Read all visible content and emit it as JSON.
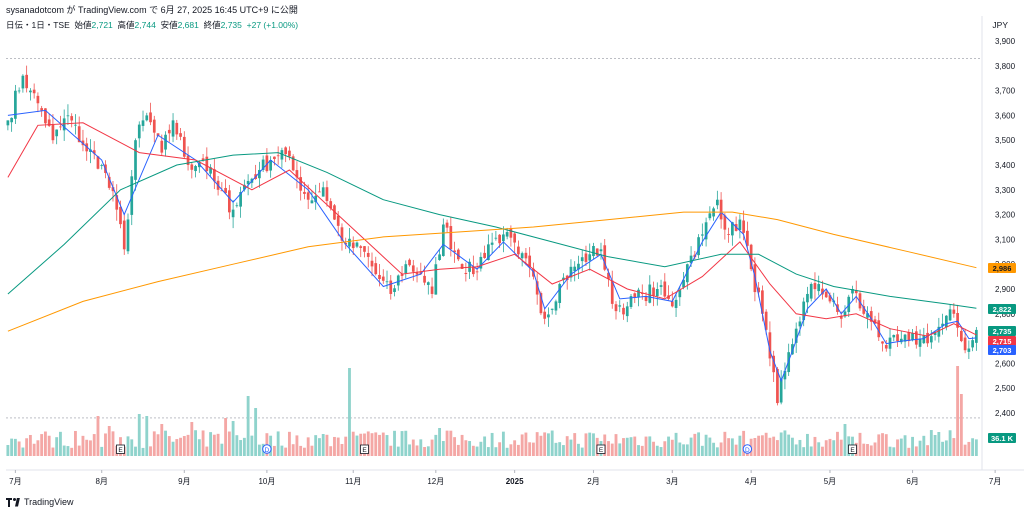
{
  "header": {
    "published_text": "sysanadotcom が TradingView.com で 6月 27, 2025 16:45 UTC+9 に公開"
  },
  "ohlc": {
    "symbol": "日伝・1日・TSE",
    "open_label": "始値",
    "open": "2,721",
    "high_label": "高値",
    "high": "2,744",
    "low_label": "安値",
    "low": "2,681",
    "close_label": "終値",
    "close": "2,735",
    "change": "+27 (+1.00%)"
  },
  "currency": "JPY",
  "footer": {
    "brand": "TradingView"
  },
  "colors": {
    "up": "#26a69a",
    "down": "#ef5350",
    "vol_up": "#8fd3cc",
    "vol_down": "#f4a7a5",
    "ma_short": "#2962ff",
    "ma_mid": "#f23645",
    "ma_long": "#089981",
    "ma_very_long": "#ff9800"
  },
  "chart_data": {
    "type": "candlestick",
    "y_axis": {
      "ticks": [
        "2,400",
        "2,500",
        "2,600",
        "2,700",
        "2,800",
        "2,900",
        "3,000",
        "3,100",
        "3,200",
        "3,300",
        "3,400",
        "3,500",
        "3,600",
        "3,700",
        "3,800",
        "3,900"
      ],
      "range": [
        2340,
        3950
      ],
      "dashed_high": 3830,
      "dashed_low": 2380
    },
    "x_axis": {
      "labels": [
        "7月",
        "8月",
        "9月",
        "10月",
        "11月",
        "12月",
        "2025",
        "2月",
        "3月",
        "4月",
        "5月",
        "6月",
        "7月"
      ],
      "label_index": [
        2,
        25,
        47,
        69,
        92,
        114,
        135,
        156,
        177,
        198,
        219,
        241,
        263
      ]
    },
    "price_badges": [
      {
        "value": "2,986",
        "price": 2986,
        "bg": "#ff9800",
        "fg": "#131722"
      },
      {
        "value": "2,822",
        "price": 2822,
        "bg": "#089981",
        "fg": "#ffffff"
      },
      {
        "value": "2,735",
        "price": 2735,
        "bg": "#089981",
        "fg": "#ffffff"
      },
      {
        "value": "2,715",
        "price": 2715,
        "bg": "#f23645",
        "fg": "#ffffff"
      },
      {
        "value": "2,703",
        "price": 2703,
        "bg": "#2962ff",
        "fg": "#ffffff"
      }
    ],
    "volume_badge": "36.1 K",
    "event_markers": [
      {
        "label": "E",
        "index": 30
      },
      {
        "label": "D",
        "index": 69
      },
      {
        "label": "E",
        "index": 95
      },
      {
        "label": "E",
        "index": 158
      },
      {
        "label": "D",
        "index": 197
      },
      {
        "label": "E",
        "index": 225
      }
    ],
    "anchors": [
      {
        "i": 0,
        "c": 3580
      },
      {
        "i": 4,
        "c": 3760
      },
      {
        "i": 6,
        "c": 3700
      },
      {
        "i": 9,
        "c": 3620
      },
      {
        "i": 12,
        "c": 3500
      },
      {
        "i": 16,
        "c": 3600
      },
      {
        "i": 20,
        "c": 3480
      },
      {
        "i": 25,
        "c": 3400
      },
      {
        "i": 29,
        "c": 3220
      },
      {
        "i": 31,
        "c": 3060
      },
      {
        "i": 34,
        "c": 3500
      },
      {
        "i": 37,
        "c": 3600
      },
      {
        "i": 41,
        "c": 3450
      },
      {
        "i": 44,
        "c": 3580
      },
      {
        "i": 48,
        "c": 3400
      },
      {
        "i": 52,
        "c": 3420
      },
      {
        "i": 56,
        "c": 3300
      },
      {
        "i": 60,
        "c": 3220
      },
      {
        "i": 63,
        "c": 3320
      },
      {
        "i": 67,
        "c": 3380
      },
      {
        "i": 70,
        "c": 3420
      },
      {
        "i": 73,
        "c": 3460
      },
      {
        "i": 77,
        "c": 3350
      },
      {
        "i": 80,
        "c": 3260
      },
      {
        "i": 84,
        "c": 3310
      },
      {
        "i": 87,
        "c": 3180
      },
      {
        "i": 90,
        "c": 3080
      },
      {
        "i": 95,
        "c": 3050
      },
      {
        "i": 98,
        "c": 2960
      },
      {
        "i": 102,
        "c": 2880
      },
      {
        "i": 106,
        "c": 3000
      },
      {
        "i": 110,
        "c": 2960
      },
      {
        "i": 113,
        "c": 2880
      },
      {
        "i": 116,
        "c": 3160
      },
      {
        "i": 120,
        "c": 3020
      },
      {
        "i": 124,
        "c": 2960
      },
      {
        "i": 128,
        "c": 3080
      },
      {
        "i": 132,
        "c": 3120
      },
      {
        "i": 136,
        "c": 3040
      },
      {
        "i": 140,
        "c": 2950
      },
      {
        "i": 143,
        "c": 2780
      },
      {
        "i": 147,
        "c": 2920
      },
      {
        "i": 151,
        "c": 2990
      },
      {
        "i": 155,
        "c": 3040
      },
      {
        "i": 158,
        "c": 3060
      },
      {
        "i": 161,
        "c": 2840
      },
      {
        "i": 165,
        "c": 2830
      },
      {
        "i": 169,
        "c": 2880
      },
      {
        "i": 173,
        "c": 2900
      },
      {
        "i": 177,
        "c": 2830
      },
      {
        "i": 181,
        "c": 3000
      },
      {
        "i": 185,
        "c": 3120
      },
      {
        "i": 189,
        "c": 3260
      },
      {
        "i": 192,
        "c": 3120
      },
      {
        "i": 195,
        "c": 3180
      },
      {
        "i": 198,
        "c": 2980
      },
      {
        "i": 201,
        "c": 2800
      },
      {
        "i": 203,
        "c": 2620
      },
      {
        "i": 205,
        "c": 2440
      },
      {
        "i": 207,
        "c": 2570
      },
      {
        "i": 210,
        "c": 2740
      },
      {
        "i": 213,
        "c": 2880
      },
      {
        "i": 216,
        "c": 2920
      },
      {
        "i": 219,
        "c": 2850
      },
      {
        "i": 222,
        "c": 2780
      },
      {
        "i": 225,
        "c": 2900
      },
      {
        "i": 228,
        "c": 2800
      },
      {
        "i": 231,
        "c": 2760
      },
      {
        "i": 234,
        "c": 2660
      },
      {
        "i": 237,
        "c": 2690
      },
      {
        "i": 240,
        "c": 2690
      },
      {
        "i": 243,
        "c": 2700
      },
      {
        "i": 246,
        "c": 2710
      },
      {
        "i": 249,
        "c": 2760
      },
      {
        "i": 252,
        "c": 2800
      },
      {
        "i": 254,
        "c": 2690
      },
      {
        "i": 256,
        "c": 2660
      },
      {
        "i": 258,
        "c": 2735
      }
    ],
    "moving_averages": [
      {
        "name": "MA5",
        "color": "#2962ff",
        "points": [
          [
            0,
            3600
          ],
          [
            10,
            3620
          ],
          [
            25,
            3420
          ],
          [
            31,
            3200
          ],
          [
            40,
            3520
          ],
          [
            50,
            3420
          ],
          [
            60,
            3250
          ],
          [
            70,
            3420
          ],
          [
            80,
            3300
          ],
          [
            90,
            3080
          ],
          [
            100,
            2910
          ],
          [
            110,
            2960
          ],
          [
            116,
            3080
          ],
          [
            125,
            2980
          ],
          [
            132,
            3090
          ],
          [
            140,
            2970
          ],
          [
            143,
            2820
          ],
          [
            150,
            2960
          ],
          [
            158,
            3040
          ],
          [
            163,
            2860
          ],
          [
            170,
            2870
          ],
          [
            177,
            2850
          ],
          [
            185,
            3090
          ],
          [
            190,
            3210
          ],
          [
            196,
            3120
          ],
          [
            199,
            2950
          ],
          [
            203,
            2650
          ],
          [
            206,
            2530
          ],
          [
            209,
            2650
          ],
          [
            213,
            2820
          ],
          [
            218,
            2900
          ],
          [
            222,
            2800
          ],
          [
            226,
            2870
          ],
          [
            230,
            2780
          ],
          [
            234,
            2680
          ],
          [
            238,
            2690
          ],
          [
            244,
            2700
          ],
          [
            250,
            2760
          ],
          [
            253,
            2770
          ],
          [
            256,
            2700
          ],
          [
            258,
            2703
          ]
        ]
      },
      {
        "name": "MA25",
        "color": "#f23645",
        "points": [
          [
            0,
            3350
          ],
          [
            8,
            3560
          ],
          [
            20,
            3570
          ],
          [
            35,
            3450
          ],
          [
            50,
            3420
          ],
          [
            65,
            3300
          ],
          [
            75,
            3380
          ],
          [
            85,
            3240
          ],
          [
            95,
            3100
          ],
          [
            105,
            2960
          ],
          [
            115,
            2980
          ],
          [
            125,
            2990
          ],
          [
            135,
            3040
          ],
          [
            145,
            2920
          ],
          [
            155,
            2980
          ],
          [
            165,
            2900
          ],
          [
            175,
            2860
          ],
          [
            185,
            2950
          ],
          [
            195,
            3090
          ],
          [
            203,
            2920
          ],
          [
            210,
            2800
          ],
          [
            218,
            2780
          ],
          [
            226,
            2800
          ],
          [
            235,
            2740
          ],
          [
            245,
            2710
          ],
          [
            252,
            2760
          ],
          [
            258,
            2715
          ]
        ]
      },
      {
        "name": "MA75",
        "color": "#089981",
        "points": [
          [
            0,
            2880
          ],
          [
            15,
            3080
          ],
          [
            30,
            3300
          ],
          [
            45,
            3400
          ],
          [
            60,
            3440
          ],
          [
            72,
            3450
          ],
          [
            85,
            3370
          ],
          [
            100,
            3260
          ],
          [
            115,
            3200
          ],
          [
            130,
            3150
          ],
          [
            145,
            3090
          ],
          [
            160,
            3030
          ],
          [
            175,
            2990
          ],
          [
            190,
            3040
          ],
          [
            200,
            3040
          ],
          [
            210,
            2960
          ],
          [
            220,
            2910
          ],
          [
            235,
            2870
          ],
          [
            250,
            2840
          ],
          [
            258,
            2822
          ]
        ]
      },
      {
        "name": "MA200",
        "color": "#ff9800",
        "points": [
          [
            0,
            2730
          ],
          [
            20,
            2850
          ],
          [
            40,
            2930
          ],
          [
            60,
            3000
          ],
          [
            80,
            3070
          ],
          [
            100,
            3110
          ],
          [
            120,
            3130
          ],
          [
            140,
            3150
          ],
          [
            160,
            3180
          ],
          [
            180,
            3210
          ],
          [
            193,
            3210
          ],
          [
            205,
            3180
          ],
          [
            220,
            3120
          ],
          [
            240,
            3050
          ],
          [
            258,
            2986
          ]
        ]
      }
    ],
    "volume_spikes": [
      {
        "i": 24,
        "v": 40
      },
      {
        "i": 27,
        "v": 30
      },
      {
        "i": 35,
        "v": 42
      },
      {
        "i": 37,
        "v": 40
      },
      {
        "i": 41,
        "v": 32
      },
      {
        "i": 49,
        "v": 34
      },
      {
        "i": 58,
        "v": 38
      },
      {
        "i": 60,
        "v": 35
      },
      {
        "i": 64,
        "v": 60
      },
      {
        "i": 66,
        "v": 48
      },
      {
        "i": 91,
        "v": 88
      },
      {
        "i": 115,
        "v": 28
      },
      {
        "i": 199,
        "v": 18
      },
      {
        "i": 223,
        "v": 32
      },
      {
        "i": 253,
        "v": 90
      },
      {
        "i": 254,
        "v": 62
      }
    ]
  }
}
